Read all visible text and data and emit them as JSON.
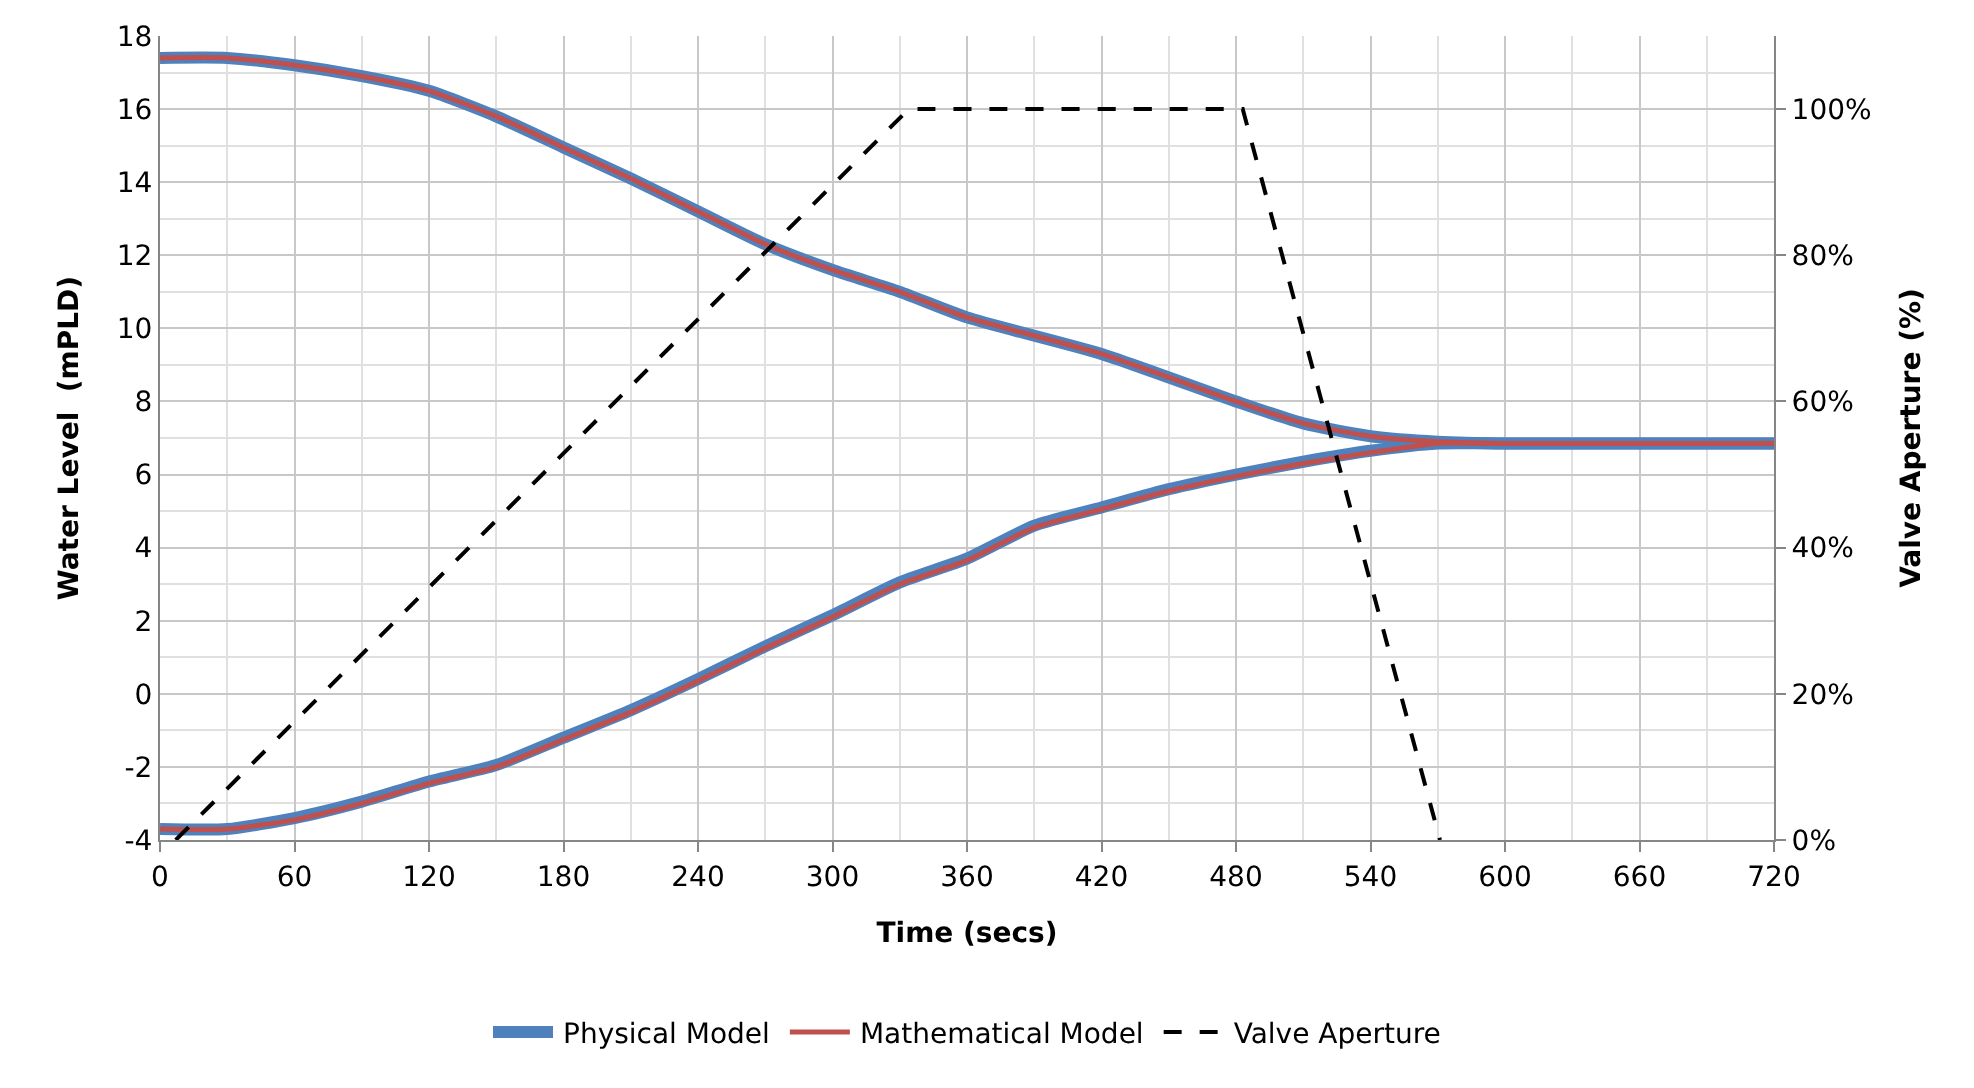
{
  "chart_data": {
    "type": "line",
    "xlabel": "Time (secs)",
    "ylabel": "Water Level  (mPLD)",
    "y2label": "Valve Aperture (%)",
    "xlim": [
      0,
      720
    ],
    "xticks": [
      0,
      60,
      120,
      180,
      240,
      300,
      360,
      420,
      480,
      540,
      600,
      660,
      720
    ],
    "ylim": [
      -4,
      18
    ],
    "yticks": [
      -4,
      -2,
      0,
      2,
      4,
      6,
      8,
      10,
      12,
      14,
      16,
      18
    ],
    "y2lim": [
      0,
      110
    ],
    "y2ticks": [
      {
        "value": 0,
        "label": "0%"
      },
      {
        "value": 20,
        "label": "20%"
      },
      {
        "value": 40,
        "label": "40%"
      },
      {
        "value": 60,
        "label": "60%"
      },
      {
        "value": 80,
        "label": "80%"
      },
      {
        "value": 100,
        "label": "100%"
      }
    ],
    "grid": true,
    "legend": "bottom",
    "marker": "none",
    "series": [
      {
        "name": "Physical Model",
        "color": "#4f81bd",
        "line_style": "solid",
        "x": [
          0,
          30,
          60,
          90,
          120,
          150,
          180,
          210,
          240,
          270,
          300,
          330,
          360,
          420,
          480,
          510,
          540,
          570,
          600,
          660,
          720,
          null,
          0,
          30,
          60,
          90,
          120,
          150,
          180,
          210,
          240,
          270,
          300,
          330,
          360,
          390,
          420,
          450,
          480,
          510,
          540,
          570,
          600,
          660,
          720
        ],
        "values": [
          17.4,
          17.4,
          17.2,
          16.9,
          16.5,
          15.8,
          14.95,
          14.1,
          13.2,
          12.3,
          11.6,
          11.0,
          10.3,
          9.3,
          8.0,
          7.4,
          7.05,
          6.9,
          6.85,
          6.85,
          6.85,
          null,
          -3.7,
          -3.7,
          -3.4,
          -2.95,
          -2.4,
          -1.95,
          -1.2,
          -0.45,
          0.4,
          1.3,
          2.15,
          3.05,
          3.7,
          4.6,
          5.1,
          5.6,
          6.0,
          6.35,
          6.65,
          6.85,
          6.85,
          6.85,
          6.85
        ]
      },
      {
        "name": "Mathematical Model",
        "color": "#c0504d",
        "line_style": "solid",
        "x": [
          0,
          30,
          60,
          90,
          120,
          150,
          180,
          210,
          240,
          270,
          300,
          330,
          360,
          420,
          480,
          510,
          540,
          570,
          600,
          660,
          720,
          null,
          0,
          30,
          60,
          90,
          120,
          150,
          180,
          210,
          240,
          270,
          300,
          330,
          360,
          390,
          420,
          450,
          480,
          510,
          540,
          570,
          600,
          660,
          720
        ],
        "values": [
          17.4,
          17.4,
          17.2,
          16.9,
          16.5,
          15.8,
          14.95,
          14.1,
          13.2,
          12.3,
          11.6,
          11.0,
          10.3,
          9.3,
          8.0,
          7.4,
          7.05,
          6.9,
          6.85,
          6.85,
          6.85,
          null,
          -3.7,
          -3.7,
          -3.45,
          -3.0,
          -2.45,
          -2.0,
          -1.25,
          -0.5,
          0.35,
          1.25,
          2.1,
          3.0,
          3.65,
          4.55,
          5.05,
          5.55,
          5.95,
          6.3,
          6.6,
          6.85,
          6.85,
          6.85,
          6.85
        ]
      },
      {
        "name": "Valve Aperture",
        "color": "#000000",
        "line_style": "dashed",
        "axis": "y2",
        "x": [
          7,
          334,
          483,
          571
        ],
        "values": [
          0,
          100,
          100,
          0
        ]
      }
    ]
  }
}
